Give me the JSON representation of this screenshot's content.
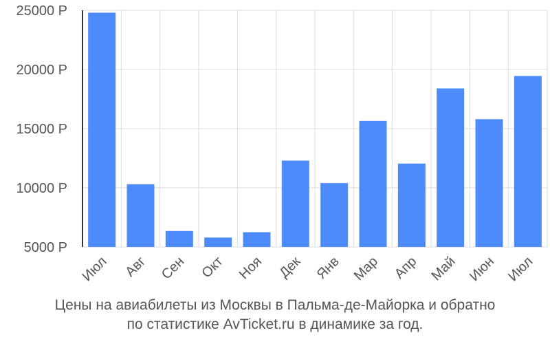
{
  "chart_data": {
    "type": "bar",
    "categories": [
      "Июл",
      "Авг",
      "Сен",
      "Окт",
      "Ноя",
      "Дек",
      "Янв",
      "Мар",
      "Апр",
      "Май",
      "Июн",
      "Июл"
    ],
    "values": [
      24800,
      10300,
      6350,
      5800,
      6250,
      12300,
      10400,
      15650,
      12050,
      18400,
      15800,
      19450
    ],
    "y_ticks": [
      "5000 Р",
      "10000 Р",
      "15000 Р",
      "20000 Р",
      "25000 Р"
    ],
    "y_tick_values": [
      5000,
      10000,
      15000,
      20000,
      25000
    ],
    "ylim": [
      5000,
      25000
    ],
    "grid": true,
    "bar_color": "#4e8bfa",
    "grid_color": "#dddddd"
  },
  "caption": {
    "line1": "Цены на авиабилеты из Москвы в Пальма-де-Майорка и обратно",
    "line2": "по статистике AvTicket.ru в динамике за год."
  }
}
